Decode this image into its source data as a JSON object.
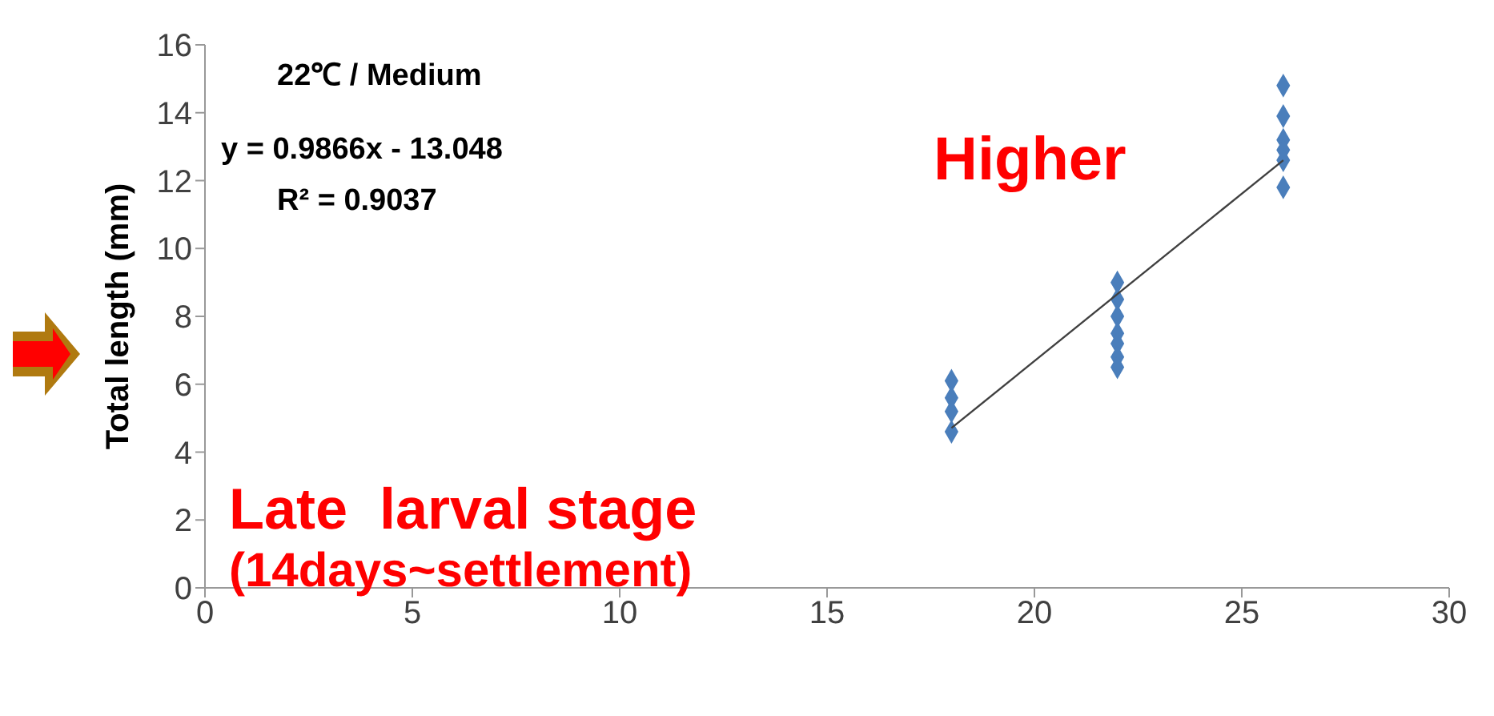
{
  "chart_data": {
    "type": "scatter",
    "ylabel": "Total length (mm)",
    "annotations": [
      "22℃ / Medium",
      "y = 0.9866x - 13.048",
      "R² = 0.9037",
      "Higher",
      "Late  larval stage",
      "(14days~settlement)"
    ],
    "series": [
      {
        "color": "#4a7ebb",
        "marker": "diamond",
        "x": [
          18,
          18,
          18,
          18,
          22,
          22,
          22,
          22,
          22,
          22,
          22,
          26,
          26,
          26,
          26,
          26,
          26
        ],
        "values": [
          6.1,
          5.6,
          5.2,
          4.6,
          9.0,
          8.5,
          8.0,
          7.5,
          7.2,
          6.8,
          6.5,
          14.8,
          13.9,
          13.2,
          12.9,
          12.6,
          11.8
        ]
      },
      {
        "type": "line",
        "color": "#404040",
        "marker": "none",
        "x": [
          18,
          26
        ],
        "values": [
          4.71,
          12.6
        ]
      }
    ],
    "xlim": [
      0,
      30
    ],
    "xticks": [
      0,
      5,
      10,
      15,
      20,
      25,
      30
    ],
    "ylim": [
      0,
      16
    ],
    "yticks": [
      0,
      2,
      4,
      6,
      8,
      10,
      12,
      14,
      16
    ],
    "grid": false
  }
}
